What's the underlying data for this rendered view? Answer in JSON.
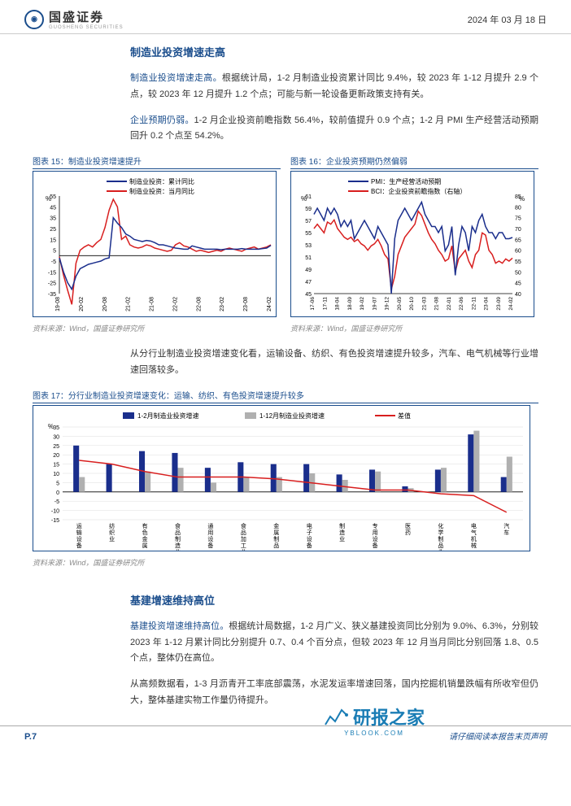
{
  "header": {
    "logo_text": "国盛证券",
    "logo_sub": "GUOSHENG SECURITIES",
    "date": "2024 年 03 月 18 日"
  },
  "section1": {
    "title": "制造业投资增速走高",
    "para1_keyword": "制造业投资增速走高。",
    "para1": "根据统计局，1-2 月制造业投资累计同比 9.4%，较 2023 年 1-12 月提升 2.9 个点，较 2023 年 12 月提升 1.2 个点；可能与新一轮设备更新政策支持有关。",
    "para2_keyword": "企业预期仍弱。",
    "para2": "1-2 月企业投资前瞻指数 56.4%，较前值提升 0.9 个点；1-2 月 PMI 生产经营活动预期回升 0.2 个点至 54.2%。"
  },
  "chart15": {
    "type": "line",
    "title": "图表 15：制造业投资增速提升",
    "source": "资料来源：Wind，国盛证券研究所",
    "ylabel": "%",
    "ylim": [
      -35,
      55
    ],
    "yticks": [
      -35,
      -25,
      -15,
      -5,
      5,
      15,
      25,
      35,
      45,
      55
    ],
    "xticks": [
      "19-08",
      "20-02",
      "20-08",
      "21-02",
      "21-08",
      "22-02",
      "22-08",
      "23-02",
      "23-08",
      "24-02"
    ],
    "legend": [
      {
        "label": "制造业投资：累计同比",
        "color": "#1a2e8c"
      },
      {
        "label": "制造业投资：当月同比",
        "color": "#d81e1e"
      }
    ],
    "series_blue": [
      -2,
      -15,
      -25,
      -31,
      -19,
      -12,
      -10,
      -8,
      -7,
      -6,
      -5,
      -3,
      -2,
      35,
      30,
      26,
      20,
      18,
      15,
      14,
      13,
      14,
      13.5,
      12,
      10,
      10,
      9,
      8,
      7,
      6.5,
      6,
      6,
      9,
      8,
      7,
      6,
      6,
      6,
      6,
      5.5,
      6,
      6,
      6,
      6,
      6.5,
      6,
      6,
      6,
      6,
      6.5,
      7,
      9.4
    ],
    "series_red": [
      -1,
      -18,
      -32,
      -45,
      -7,
      5,
      8,
      10,
      8,
      12,
      15,
      26,
      42,
      52,
      45,
      15,
      18,
      10,
      8,
      7,
      8,
      10,
      9,
      7,
      6,
      5,
      4,
      5,
      10,
      12,
      9,
      8,
      6,
      4,
      5,
      4,
      3,
      4,
      5,
      4,
      6,
      7,
      6,
      5,
      4,
      6,
      7,
      8,
      6,
      7,
      8,
      10
    ],
    "background_color": "#ffffff",
    "line_width": 1.5,
    "label_fontsize": 8
  },
  "chart16": {
    "type": "line",
    "title": "图表 16：企业投资预期仍然偏弱",
    "source": "资料来源：Wind，国盛证券研究所",
    "ylabel_left": "%",
    "ylabel_right": "%",
    "ylim_left": [
      45,
      61
    ],
    "yticks_left": [
      45,
      47,
      49,
      51,
      53,
      55,
      57,
      59,
      61
    ],
    "ylim_right": [
      40,
      85
    ],
    "yticks_right": [
      40,
      45,
      50,
      55,
      60,
      65,
      70,
      75,
      80,
      85
    ],
    "xticks": [
      "17-06",
      "17-11",
      "18-04",
      "18-09",
      "19-02",
      "19-07",
      "19-12",
      "20-05",
      "20-10",
      "21-03",
      "21-08",
      "22-01",
      "22-06",
      "22-11",
      "23-04",
      "23-09",
      "24-02"
    ],
    "legend": [
      {
        "label": "PMI：生产经营活动预期",
        "color": "#1a2e8c"
      },
      {
        "label": "BCI：企业投资前瞻指数（右轴）",
        "color": "#d81e1e"
      }
    ],
    "series_blue": [
      58,
      59,
      58,
      57,
      59,
      58,
      59,
      58,
      56,
      57,
      56,
      57,
      54,
      55,
      56,
      57,
      56,
      55,
      54,
      56,
      55,
      54,
      53,
      45,
      54,
      57,
      58,
      59,
      58,
      57,
      58,
      59,
      60,
      58,
      57,
      56,
      56,
      55,
      56,
      52,
      53,
      56,
      48,
      53,
      56,
      55,
      52,
      56,
      55,
      57,
      58,
      56,
      55,
      55,
      54,
      55,
      55,
      54,
      54,
      54.2
    ],
    "series_red": [
      70,
      72,
      70,
      68,
      73,
      72,
      74,
      70,
      68,
      66,
      65,
      66,
      64,
      65,
      63,
      62,
      60,
      62,
      63,
      65,
      62,
      58,
      56,
      42,
      48,
      58,
      62,
      66,
      68,
      70,
      72,
      78,
      76,
      72,
      68,
      65,
      63,
      60,
      58,
      55,
      56,
      62,
      50,
      56,
      58,
      60,
      55,
      52,
      58,
      60,
      68,
      67,
      60,
      58,
      54,
      55,
      54,
      56,
      55,
      56.4
    ],
    "background_color": "#ffffff",
    "line_width": 1.5,
    "label_fontsize": 8
  },
  "para_mid": "从分行业制造业投资增速变化看，运输设备、纺织、有色投资增速提升较多，汽车、电气机械等行业增速回落较多。",
  "chart17": {
    "type": "bar",
    "title": "图表 17：分行业制造业投资增速变化：运输、纺织、有色投资增速提升较多",
    "source": "资料来源：Wind，国盛证券研究所",
    "ylabel": "%",
    "ylim": [
      -15,
      35
    ],
    "yticks": [
      -15,
      -10,
      -5,
      0,
      5,
      10,
      15,
      20,
      25,
      30,
      35
    ],
    "legend": [
      {
        "label": "1-2月制造业投资增速",
        "color": "#1a2e8c",
        "type": "bar"
      },
      {
        "label": "1-12月制造业投资增速",
        "color": "#b0b0b0",
        "type": "bar"
      },
      {
        "label": "差值",
        "color": "#d81e1e",
        "type": "line"
      }
    ],
    "categories": [
      "运输设备",
      "纺织业",
      "有色金属",
      "食品制造业",
      "通用设备",
      "食品加工业",
      "金属制品",
      "电子设备",
      "制造业",
      "专用设备",
      "医药",
      "化学制品业",
      "电气机械",
      "汽车"
    ],
    "bars_blue": [
      25,
      15,
      22,
      21,
      13,
      16,
      15,
      15,
      9.4,
      12,
      3,
      12,
      31,
      8
    ],
    "bars_gray": [
      8,
      0,
      11,
      13,
      5,
      8,
      8,
      10,
      6.5,
      11,
      2,
      13,
      33,
      19
    ],
    "line_red": [
      17,
      15,
      11,
      8,
      8,
      8,
      7,
      5,
      3,
      1,
      1,
      -1,
      -2,
      -11
    ],
    "bar_width": 0.35,
    "background_color": "#ffffff",
    "label_fontsize": 7
  },
  "section2": {
    "title": "基建增速维持高位",
    "para1_keyword": "基建投资增速维持高位。",
    "para1": "根据统计局数据，1-2 月广义、狭义基建投资同比分别为 9.0%、6.3%，分别较 2023 年 1-12 月累计同比分别提升 0.7、0.4 个百分点，但较 2023 年 12 月当月同比分别回落 1.8、0.5 个点，整体仍在高位。",
    "para2": "从高频数据看，1-3 月沥青开工率底部震荡，水泥发运率增速回落，国内挖掘机销量跌幅有所收窄但仍大，整体基建实物工作量仍待提升。"
  },
  "footer": {
    "page_num": "P.7",
    "note": "请仔细阅读本报告末页声明"
  },
  "watermark": {
    "text": "研报之家",
    "sub": "YBLOOK.COM"
  }
}
